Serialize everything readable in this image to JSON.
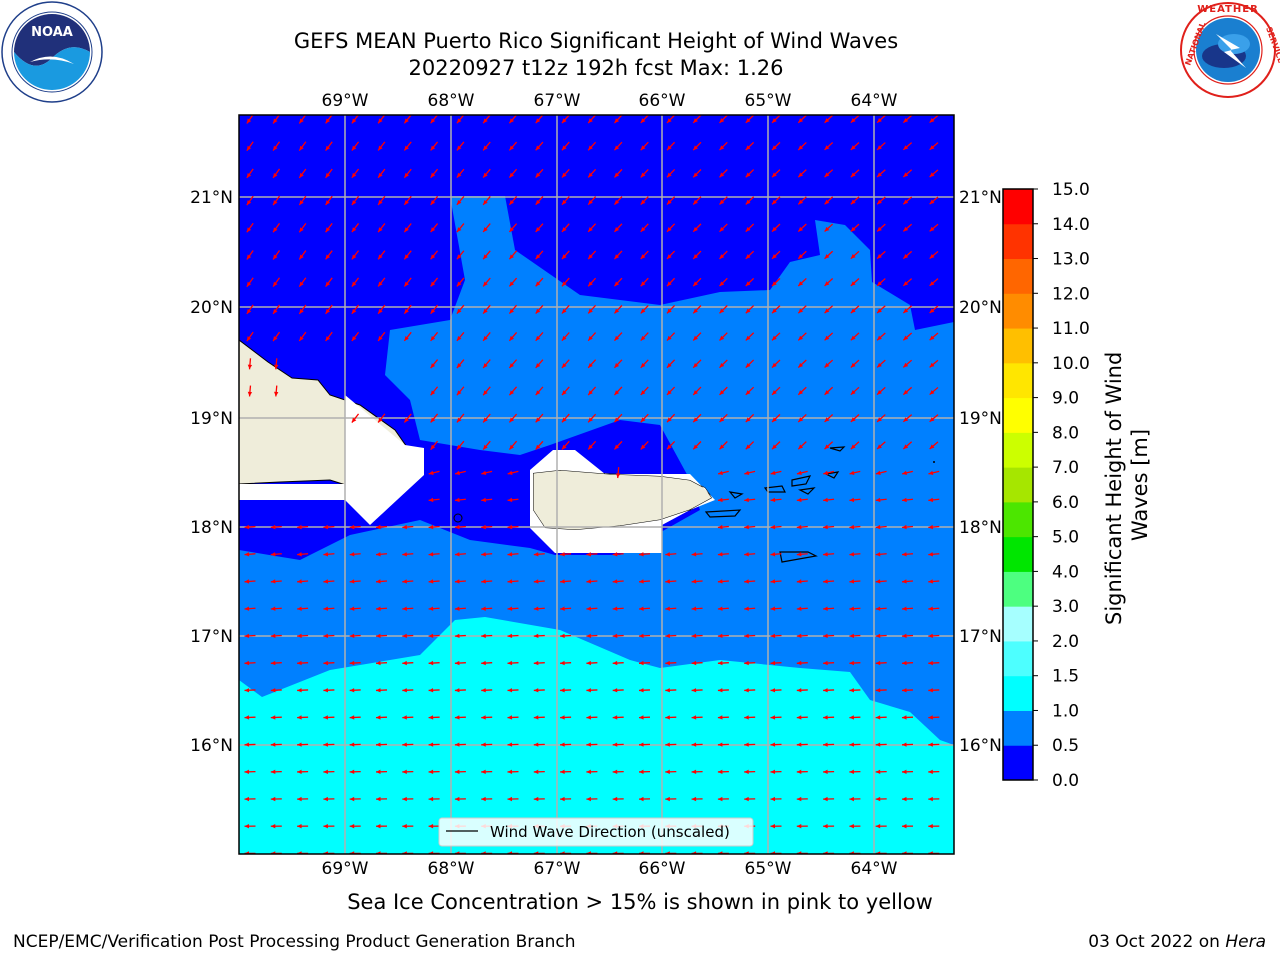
{
  "header": {
    "title_line1": "GEFS MEAN Puerto Rico Significant Height of Wind Waves",
    "title_line2": "20220927 t12z 192h fcst   Max: 1.26"
  },
  "logos": {
    "left": {
      "name": "noaa-logo",
      "text": "NOAA",
      "ring": "NATIONAL OCEANIC AND ATMOSPHERIC ADMINISTRATION · U.S. DEPARTMENT OF COMMERCE"
    },
    "right": {
      "name": "nws-logo",
      "ring": "NATIONAL WEATHER SERVICE"
    }
  },
  "map": {
    "lon_ticks": [
      "69°W",
      "68°W",
      "67°W",
      "66°W",
      "65°W",
      "64°W"
    ],
    "lat_ticks": [
      "21°N",
      "20°N",
      "19°N",
      "18°N",
      "17°N",
      "16°N"
    ],
    "legend_label": "Wind Wave Direction (unscaled)",
    "colors": {
      "level_0": "#0000ff",
      "level_1": "#0080ff",
      "level_2": "#00ffff",
      "land": "#efedda",
      "arrows": "#ff0000",
      "grid": "#b0b0b0"
    }
  },
  "colorbar": {
    "label": "Significant Height of Wind Waves [m]",
    "tick_labels": [
      "0.0",
      "0.5",
      "1.0",
      "1.5",
      "2.0",
      "3.0",
      "4.0",
      "5.0",
      "6.0",
      "7.0",
      "8.0",
      "9.0",
      "10.0",
      "11.0",
      "12.0",
      "13.0",
      "14.0",
      "15.0"
    ],
    "colors": [
      "#0000ff",
      "#0080ff",
      "#00ffff",
      "#4dffff",
      "#a6ffff",
      "#4dff80",
      "#00e600",
      "#4ce600",
      "#a6e600",
      "#ccff00",
      "#ffff00",
      "#ffe600",
      "#ffbf00",
      "#ff8c00",
      "#ff6600",
      "#ff3300",
      "#ff0000"
    ]
  },
  "note": "Sea Ice Concentration > 15% is shown in pink to yellow",
  "footer": {
    "left": "NCEP/EMC/Verification Post Processing Product Generation Branch",
    "right_prefix": "03 Oct 2022 on ",
    "right_host": "Hera"
  }
}
